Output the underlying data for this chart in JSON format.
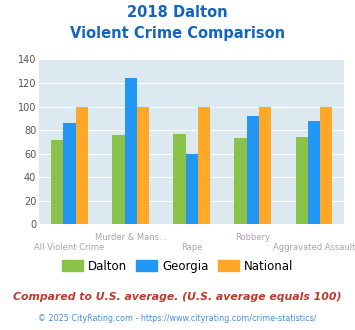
{
  "title_line1": "2018 Dalton",
  "title_line2": "Violent Crime Comparison",
  "cat_labels_row1": [
    "",
    "Murder & Mans...",
    "",
    "Robbery",
    ""
  ],
  "cat_labels_row2": [
    "All Violent Crime",
    "",
    "Rape",
    "",
    "Aggravated Assault"
  ],
  "dalton": [
    72,
    76,
    77,
    73,
    74
  ],
  "georgia": [
    86,
    124,
    60,
    92,
    88
  ],
  "national": [
    100,
    100,
    100,
    100,
    100
  ],
  "dalton_color": "#8bc34a",
  "georgia_color": "#2196f3",
  "national_color": "#ffa726",
  "bg_color": "#dce9f0",
  "title_color": "#1565c0",
  "xlabel_color": "#b0a0b0",
  "ylabel_color": "#555555",
  "ylim": [
    0,
    140
  ],
  "yticks": [
    0,
    20,
    40,
    60,
    80,
    100,
    120,
    140
  ],
  "footnote1": "Compared to U.S. average. (U.S. average equals 100)",
  "footnote2": "© 2025 CityRating.com - https://www.cityrating.com/crime-statistics/",
  "footnote1_color": "#c0392b",
  "footnote2_color": "#4a90d9"
}
